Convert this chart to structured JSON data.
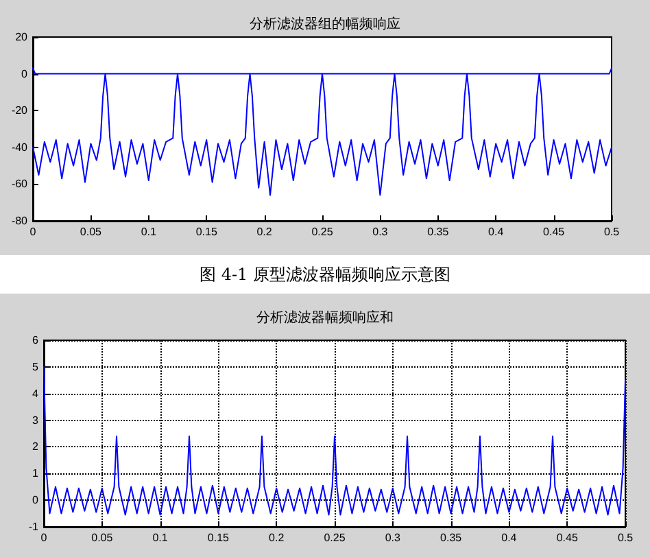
{
  "chart_data": [
    {
      "type": "line",
      "title": "分析滤波器组的幅频响应",
      "annotations": [
        "图 4-1 原型滤波器幅频响应示意图"
      ],
      "xlim": [
        0,
        0.5
      ],
      "xticks": [
        0,
        0.05,
        0.1,
        0.15,
        0.2,
        0.25,
        0.3,
        0.35,
        0.4,
        0.45,
        0.5
      ],
      "ylim": [
        -80,
        20
      ],
      "yticks": [
        -80,
        -60,
        -40,
        -20,
        0,
        20
      ],
      "series": [
        {
          "color": "#0000ff",
          "x": [
            0,
            0.002,
            0.1,
            0.2,
            0.3,
            0.4,
            0.498,
            0.5
          ],
          "values": [
            3,
            0,
            0,
            0,
            0,
            0,
            0,
            3
          ]
        },
        {
          "color": "#0000ff",
          "x": [
            0,
            0.005,
            0.01,
            0.015,
            0.02,
            0.025,
            0.03,
            0.035,
            0.04,
            0.045,
            0.05,
            0.055,
            0.0585,
            0.0605,
            0.0625,
            0.0645,
            0.0665,
            0.07,
            0.075,
            0.08,
            0.085,
            0.09,
            0.095,
            0.1,
            0.105,
            0.11,
            0.115,
            0.121,
            0.123,
            0.125,
            0.127,
            0.129,
            0.135,
            0.14,
            0.145,
            0.15,
            0.155,
            0.16,
            0.165,
            0.17,
            0.175,
            0.18,
            0.1835,
            0.1855,
            0.1875,
            0.1895,
            0.1915,
            0.195,
            0.2,
            0.205,
            0.21,
            0.215,
            0.22,
            0.225,
            0.23,
            0.235,
            0.24,
            0.246,
            0.248,
            0.25,
            0.252,
            0.254,
            0.26,
            0.265,
            0.27,
            0.275,
            0.28,
            0.285,
            0.29,
            0.295,
            0.3,
            0.305,
            0.3085,
            0.3105,
            0.3125,
            0.3145,
            0.3165,
            0.32,
            0.325,
            0.33,
            0.335,
            0.34,
            0.345,
            0.35,
            0.355,
            0.36,
            0.365,
            0.371,
            0.373,
            0.375,
            0.377,
            0.379,
            0.385,
            0.39,
            0.395,
            0.4,
            0.405,
            0.41,
            0.415,
            0.42,
            0.425,
            0.43,
            0.4335,
            0.4355,
            0.4375,
            0.4395,
            0.4415,
            0.445,
            0.45,
            0.455,
            0.46,
            0.465,
            0.47,
            0.475,
            0.48,
            0.485,
            0.49,
            0.495,
            0.5
          ],
          "values": [
            -40,
            -55,
            -37,
            -48,
            -36,
            -57,
            -38,
            -50,
            -36,
            -59,
            -38,
            -47,
            -35,
            -12,
            0,
            -12,
            -35,
            -52,
            -37,
            -56,
            -36,
            -49,
            -38,
            -58,
            -36,
            -47,
            -37,
            -35,
            -12,
            0,
            -12,
            -35,
            -55,
            -37,
            -50,
            -36,
            -59,
            -38,
            -48,
            -36,
            -57,
            -38,
            -35,
            -12,
            0,
            -12,
            -35,
            -62,
            -37,
            -66,
            -36,
            -52,
            -38,
            -58,
            -36,
            -49,
            -37,
            -35,
            -12,
            0,
            -12,
            -35,
            -56,
            -37,
            -50,
            -36,
            -58,
            -38,
            -48,
            -36,
            -66,
            -38,
            -35,
            -12,
            0,
            -12,
            -35,
            -55,
            -37,
            -49,
            -36,
            -57,
            -38,
            -50,
            -36,
            -58,
            -37,
            -35,
            -12,
            0,
            -12,
            -35,
            -52,
            -36,
            -56,
            -38,
            -48,
            -36,
            -57,
            -37,
            -50,
            -38,
            -35,
            -12,
            0,
            -12,
            -35,
            -55,
            -36,
            -49,
            -38,
            -57,
            -36,
            -48,
            -37,
            -54,
            -36,
            -50,
            -40
          ]
        }
      ]
    },
    {
      "type": "line",
      "title": "分析滤波器幅频响应和",
      "grid": true,
      "xlim": [
        0,
        0.5
      ],
      "xticks": [
        0,
        0.05,
        0.1,
        0.15,
        0.2,
        0.25,
        0.3,
        0.35,
        0.4,
        0.45,
        0.5
      ],
      "ylim": [
        -1,
        6
      ],
      "yticks": [
        -1,
        0,
        1,
        2,
        3,
        4,
        5,
        6
      ],
      "series": [
        {
          "color": "#0000ff",
          "x": [
            0,
            0.002,
            0.005,
            0.01,
            0.015,
            0.02,
            0.025,
            0.03,
            0.035,
            0.04,
            0.045,
            0.05,
            0.055,
            0.0605,
            0.0625,
            0.0645,
            0.07,
            0.075,
            0.08,
            0.085,
            0.09,
            0.095,
            0.1,
            0.105,
            0.11,
            0.115,
            0.12,
            0.123,
            0.125,
            0.127,
            0.13,
            0.135,
            0.14,
            0.145,
            0.15,
            0.155,
            0.16,
            0.165,
            0.17,
            0.175,
            0.18,
            0.1855,
            0.1875,
            0.1895,
            0.195,
            0.2,
            0.205,
            0.21,
            0.215,
            0.22,
            0.225,
            0.23,
            0.235,
            0.24,
            0.245,
            0.248,
            0.25,
            0.252,
            0.255,
            0.26,
            0.265,
            0.27,
            0.275,
            0.28,
            0.285,
            0.29,
            0.295,
            0.3,
            0.305,
            0.3105,
            0.3125,
            0.3145,
            0.32,
            0.325,
            0.33,
            0.335,
            0.34,
            0.345,
            0.35,
            0.355,
            0.36,
            0.365,
            0.37,
            0.373,
            0.375,
            0.377,
            0.38,
            0.385,
            0.39,
            0.395,
            0.4,
            0.405,
            0.41,
            0.415,
            0.42,
            0.425,
            0.43,
            0.4355,
            0.4375,
            0.4395,
            0.445,
            0.45,
            0.455,
            0.46,
            0.465,
            0.47,
            0.475,
            0.48,
            0.485,
            0.49,
            0.495,
            0.498,
            0.5
          ],
          "values": [
            5,
            1.2,
            -0.5,
            0.5,
            -0.5,
            0.45,
            -0.45,
            0.45,
            -0.4,
            0.4,
            -0.45,
            0.45,
            -0.5,
            0.5,
            2.4,
            0.5,
            -0.55,
            0.5,
            -0.5,
            0.5,
            -0.5,
            0.5,
            -0.55,
            0.5,
            -0.5,
            0.5,
            -0.5,
            0.5,
            2.4,
            0.5,
            -0.5,
            0.5,
            -0.5,
            0.55,
            -0.5,
            0.5,
            -0.45,
            0.45,
            -0.45,
            0.45,
            -0.5,
            0.5,
            2.4,
            0.5,
            -0.5,
            0.45,
            -0.45,
            0.4,
            -0.4,
            0.45,
            -0.5,
            0.5,
            -0.5,
            0.55,
            -0.55,
            0.5,
            2.4,
            0.5,
            -0.55,
            0.55,
            -0.5,
            0.5,
            -0.45,
            0.45,
            -0.4,
            0.4,
            -0.45,
            0.45,
            -0.5,
            0.5,
            2.4,
            0.5,
            -0.5,
            0.5,
            -0.5,
            0.55,
            -0.5,
            0.5,
            -0.5,
            0.5,
            -0.5,
            0.5,
            -0.45,
            0.5,
            2.4,
            0.5,
            -0.5,
            0.5,
            -0.5,
            0.45,
            -0.45,
            0.4,
            -0.4,
            0.45,
            -0.45,
            0.5,
            -0.5,
            0.5,
            2.4,
            0.5,
            -0.5,
            0.45,
            -0.4,
            0.4,
            -0.45,
            0.45,
            -0.5,
            0.5,
            -0.55,
            0.55,
            -0.5,
            1.2,
            4.5
          ]
        }
      ]
    }
  ]
}
